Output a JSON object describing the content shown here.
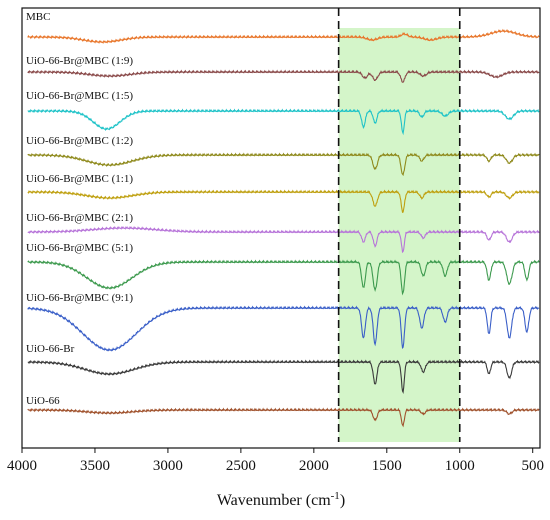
{
  "chart_data": {
    "type": "line",
    "title": "",
    "xlabel": "Wavenumber (cm",
    "xlabel_sup": "-1",
    "xlabel_close": ")",
    "ylabel": "",
    "xlim": [
      4000,
      450
    ],
    "x_reversed": true,
    "ticks": [
      "4000",
      "3500",
      "3000",
      "2500",
      "2000",
      "1500",
      "1000",
      "500"
    ],
    "tick_values": [
      4000,
      3500,
      3000,
      2500,
      2000,
      1500,
      1000,
      500
    ],
    "highlight_region": {
      "from": 1830,
      "to": 1000,
      "color": "#d4f5c9"
    },
    "dashed_lines": [
      1830,
      1000
    ],
    "series": [
      {
        "name": "MBC",
        "color": "#e8762b",
        "base": 0.5,
        "features": [
          [
            3450,
            5,
            180
          ],
          [
            1600,
            3,
            50
          ],
          [
            1380,
            -3,
            30
          ],
          [
            1200,
            3,
            60
          ],
          [
            700,
            -6,
            120
          ]
        ]
      },
      {
        "name": "UiO-66-Br@MBC (1:9)",
        "color": "#8a4a4a",
        "base": 0.5,
        "features": [
          [
            3400,
            4,
            200
          ],
          [
            1650,
            6,
            25
          ],
          [
            1580,
            8,
            25
          ],
          [
            1390,
            10,
            20
          ],
          [
            1250,
            4,
            30
          ],
          [
            750,
            5,
            60
          ]
        ]
      },
      {
        "name": "UiO-66-Br@MBC (1:5)",
        "color": "#1fc3c8",
        "base": 0.5,
        "features": [
          [
            3420,
            18,
            130
          ],
          [
            1660,
            16,
            18
          ],
          [
            1580,
            12,
            18
          ],
          [
            1390,
            22,
            14
          ],
          [
            1260,
            6,
            20
          ],
          [
            1100,
            5,
            30
          ],
          [
            660,
            8,
            40
          ]
        ]
      },
      {
        "name": "UiO-66-Br@MBC (1:2)",
        "color": "#8f8a1c",
        "base": 0.5,
        "features": [
          [
            3400,
            10,
            220
          ],
          [
            1580,
            14,
            22
          ],
          [
            1390,
            20,
            18
          ],
          [
            1260,
            6,
            20
          ],
          [
            800,
            6,
            20
          ],
          [
            660,
            8,
            30
          ]
        ]
      },
      {
        "name": "UiO-66-Br@MBC (1:1)",
        "color": "#bfa010",
        "base": 0.5,
        "features": [
          [
            3400,
            6,
            220
          ],
          [
            1580,
            14,
            22
          ],
          [
            1390,
            20,
            16
          ],
          [
            1260,
            6,
            20
          ],
          [
            800,
            5,
            20
          ],
          [
            660,
            6,
            30
          ]
        ]
      },
      {
        "name": "UiO-66-Br@MBC (2:1)",
        "color": "#b774d9",
        "base": 0.5,
        "features": [
          [
            3300,
            -4,
            300
          ],
          [
            1660,
            10,
            18
          ],
          [
            1580,
            14,
            18
          ],
          [
            1390,
            20,
            14
          ],
          [
            1250,
            6,
            20
          ],
          [
            800,
            8,
            20
          ],
          [
            660,
            10,
            28
          ]
        ]
      },
      {
        "name": "UiO-66-Br@MBC (5:1)",
        "color": "#3d9a4e",
        "base": 0.5,
        "features": [
          [
            3400,
            26,
            220
          ],
          [
            1660,
            26,
            18
          ],
          [
            1580,
            28,
            20
          ],
          [
            1390,
            32,
            16
          ],
          [
            1250,
            14,
            20
          ],
          [
            1100,
            14,
            20
          ],
          [
            800,
            18,
            18
          ],
          [
            660,
            22,
            26
          ],
          [
            540,
            18,
            18
          ]
        ]
      },
      {
        "name": "UiO-66-Br@MBC (9:1)",
        "color": "#3a5fc8",
        "base": 0.5,
        "features": [
          [
            3400,
            42,
            260
          ],
          [
            1660,
            30,
            18
          ],
          [
            1580,
            36,
            18
          ],
          [
            1390,
            40,
            16
          ],
          [
            1260,
            20,
            20
          ],
          [
            1100,
            14,
            20
          ],
          [
            800,
            26,
            16
          ],
          [
            660,
            30,
            22
          ],
          [
            540,
            24,
            18
          ]
        ]
      },
      {
        "name": "UiO-66-Br",
        "color": "#3a3a3a",
        "base": 0.5,
        "features": [
          [
            3400,
            12,
            240
          ],
          [
            1580,
            22,
            18
          ],
          [
            1390,
            30,
            14
          ],
          [
            1250,
            10,
            20
          ],
          [
            800,
            12,
            16
          ],
          [
            660,
            16,
            22
          ]
        ]
      },
      {
        "name": "UiO-66",
        "color": "#a0522d",
        "base": 0.5,
        "features": [
          [
            3400,
            3,
            220
          ],
          [
            1580,
            10,
            20
          ],
          [
            1390,
            16,
            14
          ],
          [
            1250,
            4,
            20
          ],
          [
            660,
            4,
            24
          ]
        ]
      }
    ]
  }
}
